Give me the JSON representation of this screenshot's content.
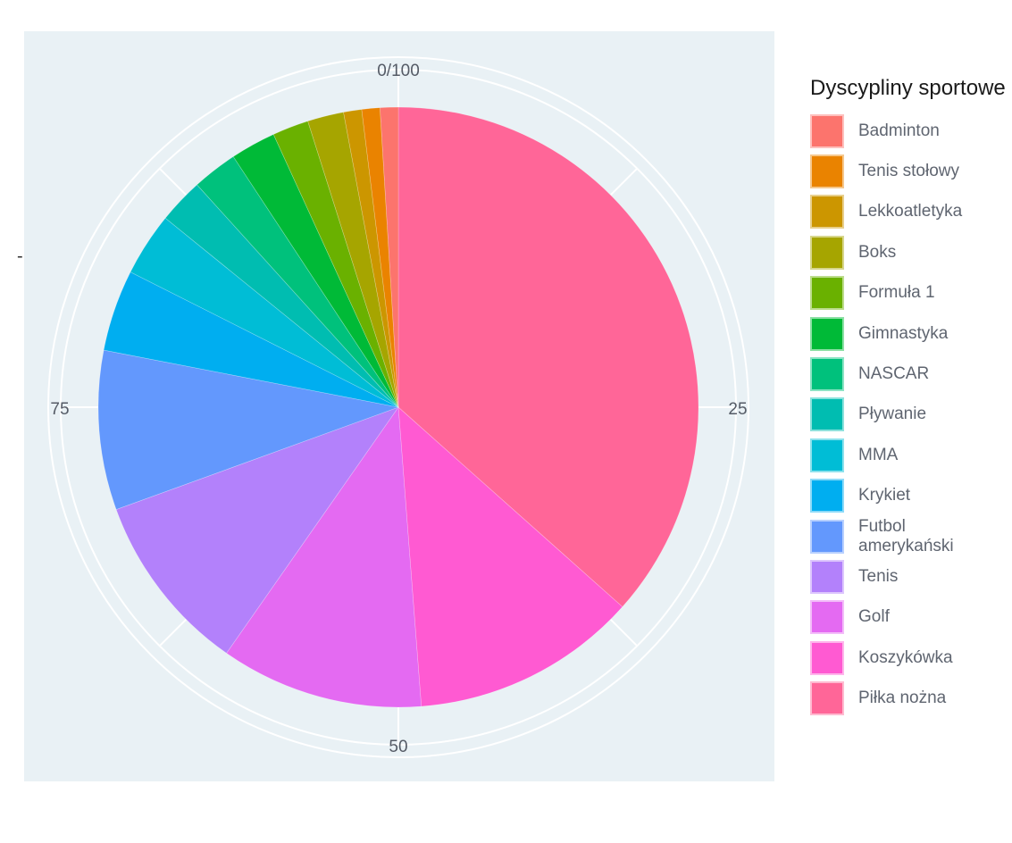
{
  "chart_data": {
    "type": "pie",
    "title": "",
    "legend_title": "Dyscypliny sportowe",
    "legend_position": "right",
    "direction": "counterclockwise",
    "angular_ticks": [
      "0/100",
      "25",
      "50",
      "75"
    ],
    "side_mark": "-",
    "colors": {
      "plot_background": "#e9f1f5",
      "grid": "#ffffff"
    },
    "slices": [
      {
        "label": "Piłka nożna",
        "value": 37.5,
        "color": "#ff6698"
      },
      {
        "label": "Koszykówka",
        "value": 12.5,
        "color": "#ff5ad2"
      },
      {
        "label": "Golf",
        "value": 11.2,
        "color": "#e46af2"
      },
      {
        "label": "Tenis",
        "value": 10.0,
        "color": "#b381fb"
      },
      {
        "label": "Futbol\namerykański",
        "value": 8.8,
        "color": "#6398fd"
      },
      {
        "label": "Krykiet",
        "value": 4.5,
        "color": "#00aef0"
      },
      {
        "label": "MMA",
        "value": 3.5,
        "color": "#00bdd6"
      },
      {
        "label": "Pływanie",
        "value": 2.5,
        "color": "#00bdb1"
      },
      {
        "label": "NASCAR",
        "value": 2.5,
        "color": "#00c17c"
      },
      {
        "label": "Gimnastyka",
        "value": 2.5,
        "color": "#00ba37"
      },
      {
        "label": "Formuła 1",
        "value": 2.0,
        "color": "#6ab100"
      },
      {
        "label": "Boks",
        "value": 2.0,
        "color": "#a6a500"
      },
      {
        "label": "Lekkoatletyka",
        "value": 1.0,
        "color": "#cc9600"
      },
      {
        "label": "Tenis stołowy",
        "value": 1.0,
        "color": "#ea8300"
      },
      {
        "label": "Badminton",
        "value": 1.0,
        "color": "#fc746d"
      }
    ]
  }
}
